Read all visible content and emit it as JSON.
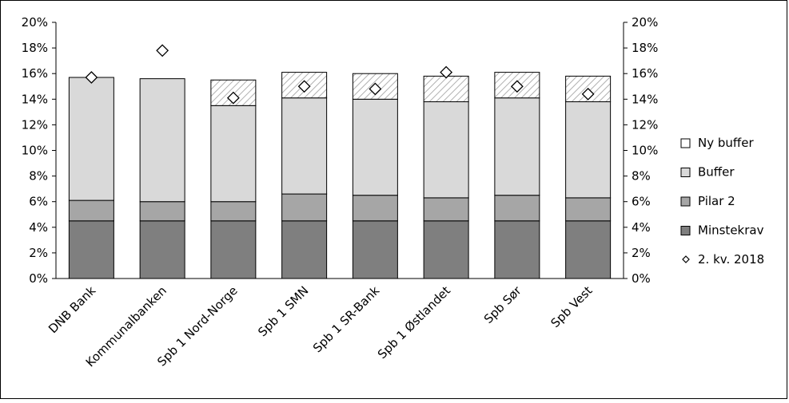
{
  "chart_data": {
    "type": "bar",
    "stacked": true,
    "categories": [
      "DNB Bank",
      "Kommunalbanken",
      "Spb 1 Nord-Norge",
      "Spb 1 SMN",
      "Spb 1 SR-Bank",
      "Spb 1 Østlandet",
      "Spb Sør",
      "Spb Vest"
    ],
    "series": [
      {
        "name": "Minstekrav",
        "kind": "bar",
        "color": "#7f7f7f",
        "fill": "solid",
        "values": [
          4.5,
          4.5,
          4.5,
          4.5,
          4.5,
          4.5,
          4.5,
          4.5
        ]
      },
      {
        "name": "Pilar 2",
        "kind": "bar",
        "color": "#a6a6a6",
        "fill": "solid",
        "values": [
          1.6,
          1.5,
          1.5,
          2.1,
          2.0,
          1.8,
          2.0,
          1.8
        ]
      },
      {
        "name": "Buffer",
        "kind": "bar",
        "color": "#d9d9d9",
        "fill": "solid",
        "values": [
          9.6,
          9.6,
          7.5,
          7.5,
          7.5,
          7.5,
          7.6,
          7.5
        ]
      },
      {
        "name": "Ny buffer",
        "kind": "bar",
        "color": "#bfbfbf",
        "fill": "hatch",
        "values": [
          0.0,
          0.0,
          2.0,
          2.0,
          2.0,
          2.0,
          2.0,
          2.0
        ]
      },
      {
        "name": "2. kv. 2018",
        "kind": "marker",
        "marker": "diamond",
        "values": [
          15.7,
          17.8,
          14.1,
          15.0,
          14.8,
          16.1,
          15.0,
          14.4
        ]
      }
    ],
    "legend_order": [
      "Ny buffer",
      "Buffer",
      "Pilar 2",
      "Minstekrav",
      "2. kv. 2018"
    ],
    "y_ticks": [
      "0%",
      "2%",
      "4%",
      "6%",
      "8%",
      "10%",
      "12%",
      "14%",
      "16%",
      "18%",
      "20%"
    ],
    "ylim": [
      0,
      20
    ],
    "secondary_y_axis": true,
    "grid": false,
    "legend_position": "right",
    "title": "",
    "xlabel": "",
    "ylabel": ""
  }
}
